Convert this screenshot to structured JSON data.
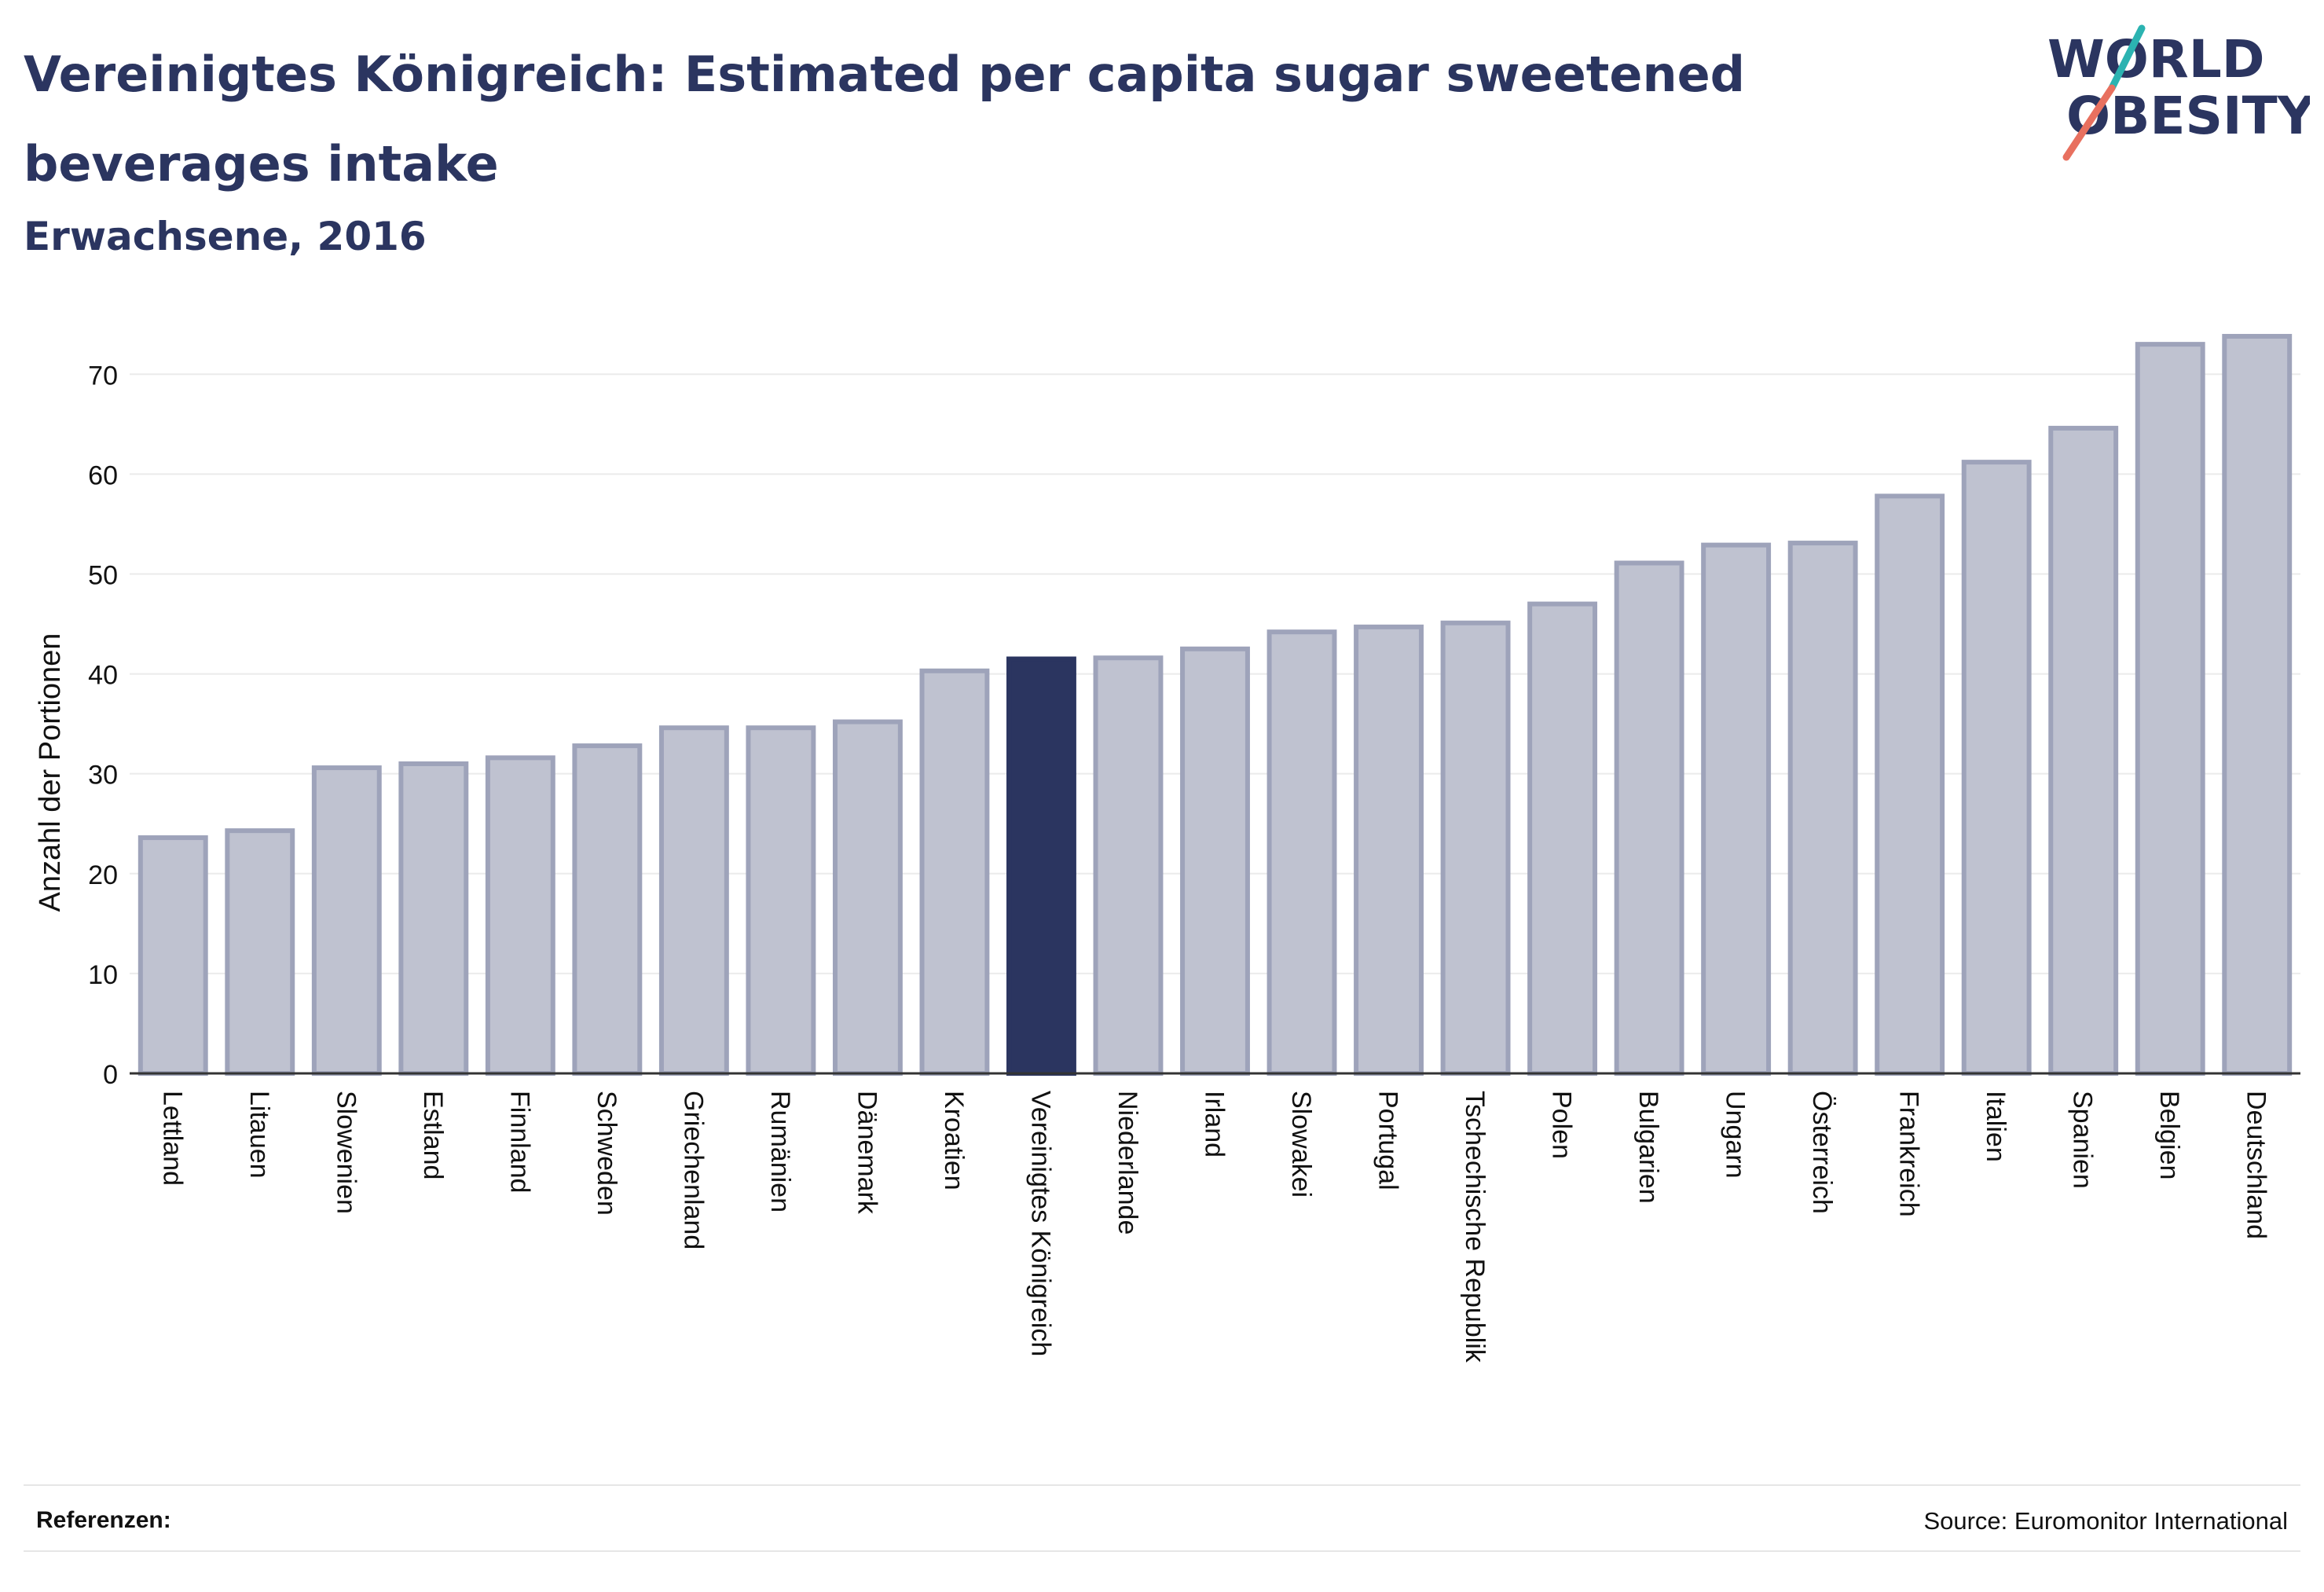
{
  "header": {
    "title": "Vereinigtes Königreich: Estimated per capita sugar sweetened beverages intake",
    "subtitle": "Erwachsene, 2016"
  },
  "logo": {
    "line1": "WORLD",
    "line2": "OBESITY",
    "accent_teal": "#2bb3b1",
    "accent_coral": "#e8705f",
    "text_color": "#2b3560"
  },
  "colors": {
    "bar_default": "#bfc2d0",
    "bar_default_border": "#9ea3ba",
    "bar_highlight": "#2b3560",
    "grid": "#ebebeb",
    "axis": "#333333",
    "text": "#111111"
  },
  "chart_data": {
    "type": "bar",
    "ylabel": "Anzahl der Portionen",
    "xlabel": "",
    "ylim": [
      0,
      76
    ],
    "yticks": [
      0,
      10,
      20,
      30,
      40,
      50,
      60,
      70
    ],
    "grid": true,
    "highlight": "Vereinigtes Königreich",
    "categories": [
      "Lettland",
      "Litauen",
      "Slowenien",
      "Estland",
      "Finnland",
      "Schweden",
      "Griechenland",
      "Rumänien",
      "Dänemark",
      "Kroatien",
      "Vereinigtes Königreich",
      "Niederlande",
      "Irland",
      "Slowakei",
      "Portugal",
      "Tschechische Republik",
      "Polen",
      "Bulgarien",
      "Ungarn",
      "Österreich",
      "Frankreich",
      "Italien",
      "Spanien",
      "Belgien",
      "Deutschland"
    ],
    "values": [
      23.6,
      24.3,
      30.6,
      31.0,
      31.6,
      32.8,
      34.6,
      34.6,
      35.2,
      40.3,
      41.5,
      41.6,
      42.5,
      44.2,
      44.7,
      45.1,
      47.0,
      51.1,
      52.9,
      53.1,
      57.8,
      61.2,
      64.6,
      73.0,
      73.8
    ]
  },
  "footer": {
    "references_label": "Referenzen:",
    "source": "Source: Euromonitor International"
  }
}
